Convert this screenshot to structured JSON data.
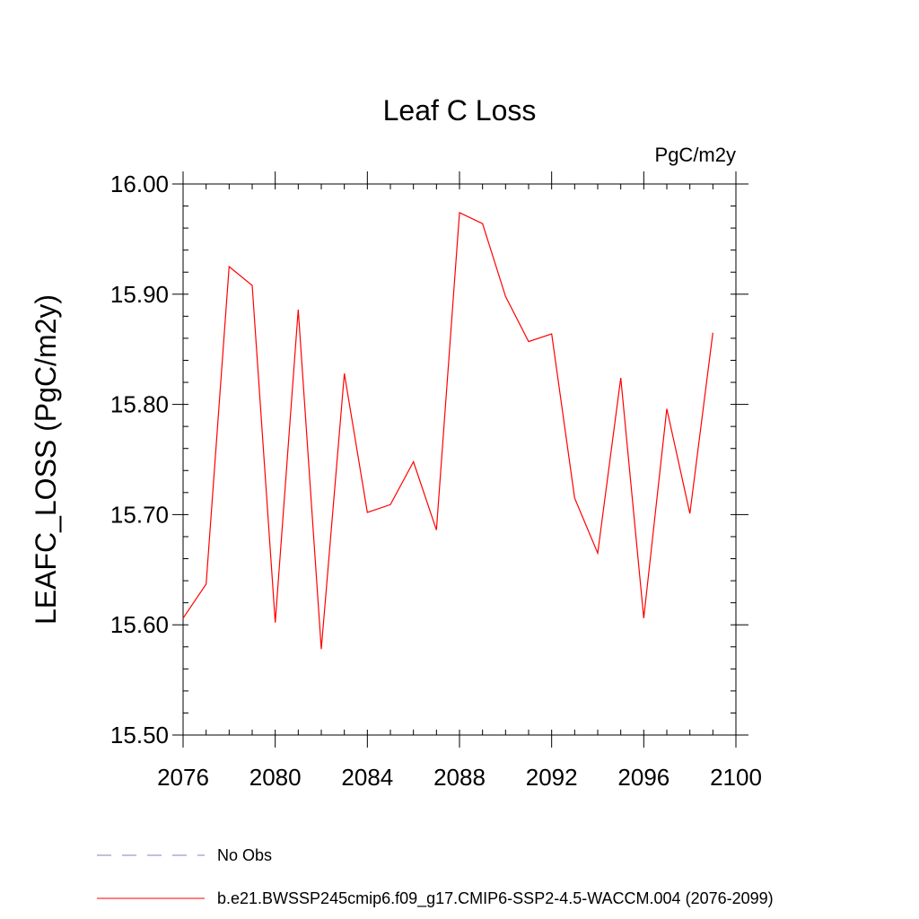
{
  "chart_data": {
    "type": "line",
    "title": "Leaf C Loss",
    "units": "PgC/m2y",
    "xlabel": "",
    "ylabel": "LEAFC_LOSS  (PgC/m2y)",
    "xlim": [
      2076,
      2100
    ],
    "ylim": [
      15.5,
      16.0
    ],
    "x_major_ticks": [
      2076,
      2080,
      2084,
      2088,
      2092,
      2096,
      2100
    ],
    "x_minor_step": 1,
    "y_major_ticks": [
      15.5,
      15.6,
      15.7,
      15.8,
      15.9,
      16.0
    ],
    "y_tick_labels": [
      "15.50",
      "15.60",
      "15.70",
      "15.80",
      "15.90",
      "16.00"
    ],
    "y_minor_step": 0.02,
    "grid": false,
    "legend_position": "bottom-left",
    "x": [
      2076,
      2077,
      2078,
      2079,
      2080,
      2081,
      2082,
      2083,
      2084,
      2085,
      2086,
      2087,
      2088,
      2089,
      2090,
      2091,
      2092,
      2093,
      2094,
      2095,
      2096,
      2097,
      2098,
      2099
    ],
    "series": [
      {
        "name": "b.e21.BWSSP245cmip6.f09_g17.CMIP6-SSP2-4.5-WACCM.004 (2076-2099)",
        "color": "#ff0000",
        "style": "solid",
        "values": [
          15.606,
          15.637,
          15.925,
          15.908,
          15.602,
          15.886,
          15.578,
          15.828,
          15.702,
          15.709,
          15.748,
          15.686,
          15.974,
          15.964,
          15.898,
          15.857,
          15.864,
          15.715,
          15.665,
          15.824,
          15.606,
          15.796,
          15.701,
          15.865
        ]
      }
    ],
    "legend": [
      {
        "label": "No Obs",
        "color": "#8080c0",
        "style": "dashed"
      },
      {
        "label": "b.e21.BWSSP245cmip6.f09_g17.CMIP6-SSP2-4.5-WACCM.004 (2076-2099)",
        "color": "#ff0000",
        "style": "solid"
      }
    ]
  }
}
